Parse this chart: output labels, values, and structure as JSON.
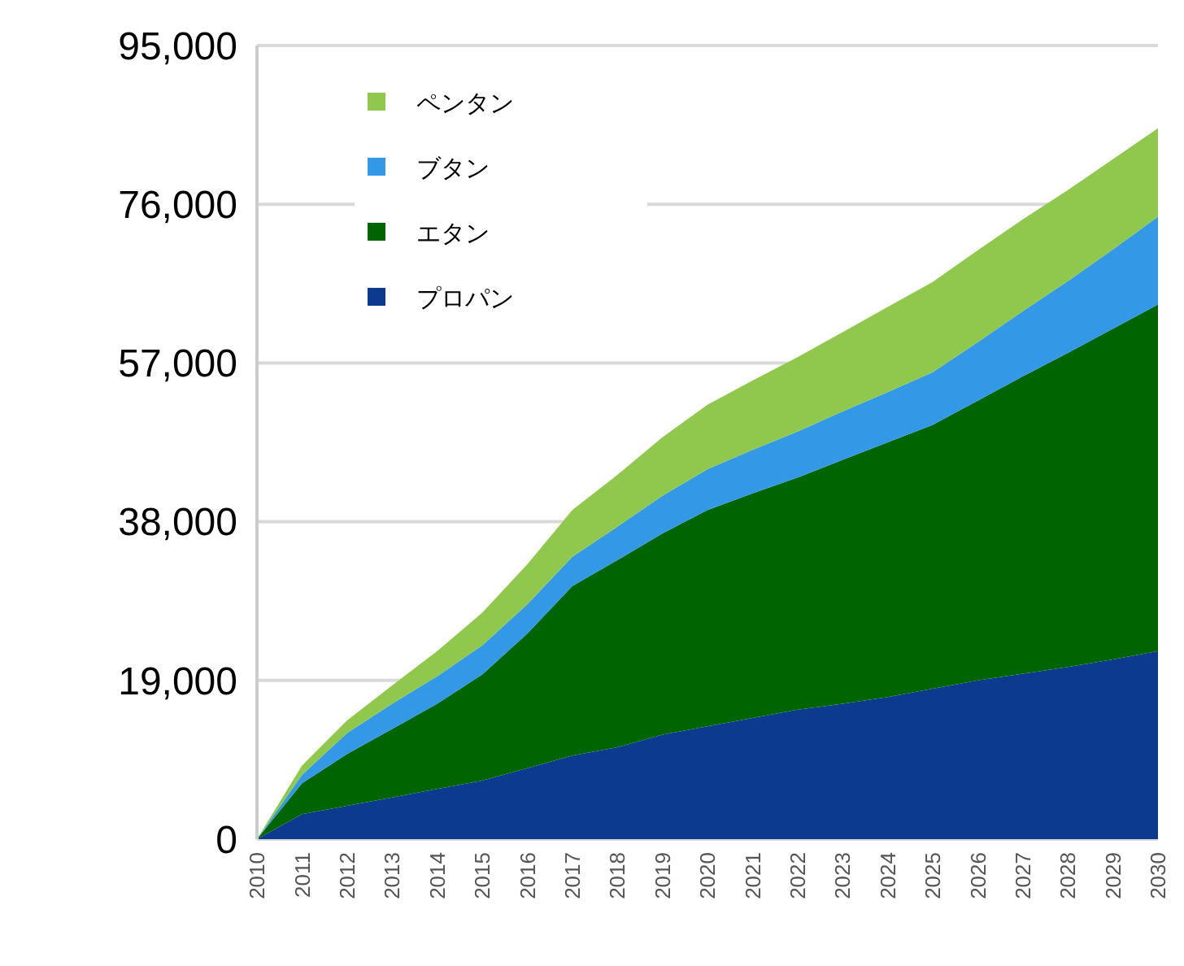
{
  "chart_data": {
    "type": "area",
    "stacked": true,
    "categories": [
      "2010",
      "2011",
      "2012",
      "2013",
      "2014",
      "2015",
      "2016",
      "2017",
      "2018",
      "2019",
      "2020",
      "2021",
      "2022",
      "2023",
      "2024",
      "2025",
      "2026",
      "2027",
      "2028",
      "2029",
      "2030"
    ],
    "series": [
      {
        "name": "プロパン",
        "color": "#0b3a8f",
        "values": [
          0,
          3000,
          4000,
          5000,
          6000,
          7000,
          8500,
          10000,
          11000,
          12500,
          13500,
          14500,
          15500,
          16200,
          17000,
          18000,
          19000,
          19800,
          20600,
          21500,
          22500
        ]
      },
      {
        "name": "エタン",
        "color": "#006400",
        "values": [
          0,
          3700,
          6200,
          8200,
          10200,
          12700,
          16100,
          20300,
          22400,
          24100,
          25900,
          26900,
          27800,
          29200,
          30500,
          31600,
          33500,
          35600,
          37600,
          39600,
          41500
        ]
      },
      {
        "name": "ブタン",
        "color": "#3399e6",
        "values": [
          0,
          1000,
          2500,
          3000,
          3300,
          3500,
          3500,
          3500,
          4000,
          4500,
          4900,
          5200,
          5500,
          5800,
          6000,
          6300,
          7000,
          7800,
          8600,
          9500,
          10500
        ]
      },
      {
        "name": "ペンタン",
        "color": "#8fc84c",
        "values": [
          0,
          1100,
          1500,
          2200,
          3000,
          3900,
          4800,
          5600,
          6200,
          7000,
          7700,
          8300,
          8900,
          9500,
          10200,
          10800,
          11000,
          11000,
          10900,
          10800,
          10600
        ]
      }
    ],
    "ylim": [
      0,
      95000
    ],
    "yticks": [
      0,
      {
        "value": 19000,
        "label": "19,000"
      },
      {
        "value": 38000,
        "label": "38,000"
      },
      {
        "value": 57000,
        "label": "57,000"
      },
      {
        "value": 76000,
        "label": "76,000"
      },
      {
        "value": 95000,
        "label": "95,000"
      }
    ],
    "grid": "y",
    "legend": "top left"
  }
}
